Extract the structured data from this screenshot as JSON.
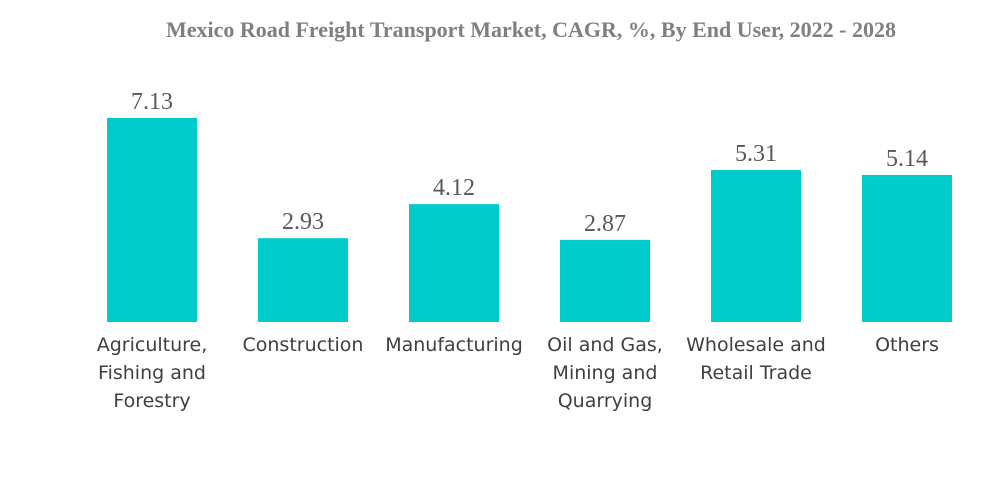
{
  "chart_data": {
    "type": "bar",
    "title": "Mexico Road Freight Transport Market, CAGR, %, By End User, 2022 - 2028",
    "xlabel": "",
    "ylabel": "",
    "categories": [
      [
        "Agriculture,",
        "Fishing and",
        "Forestry"
      ],
      [
        "Construction"
      ],
      [
        "Manufacturing"
      ],
      [
        "Oil and Gas,",
        "Mining and",
        "Quarrying"
      ],
      [
        "Wholesale and",
        "Retail Trade"
      ],
      [
        "Others"
      ]
    ],
    "values": [
      7.13,
      2.93,
      4.12,
      2.87,
      5.31,
      5.14
    ],
    "value_labels": [
      "7.13",
      "2.93",
      "4.12",
      "2.87",
      "5.31",
      "5.14"
    ],
    "bar_color": "#00cccc",
    "grid": false,
    "legend": "none"
  }
}
